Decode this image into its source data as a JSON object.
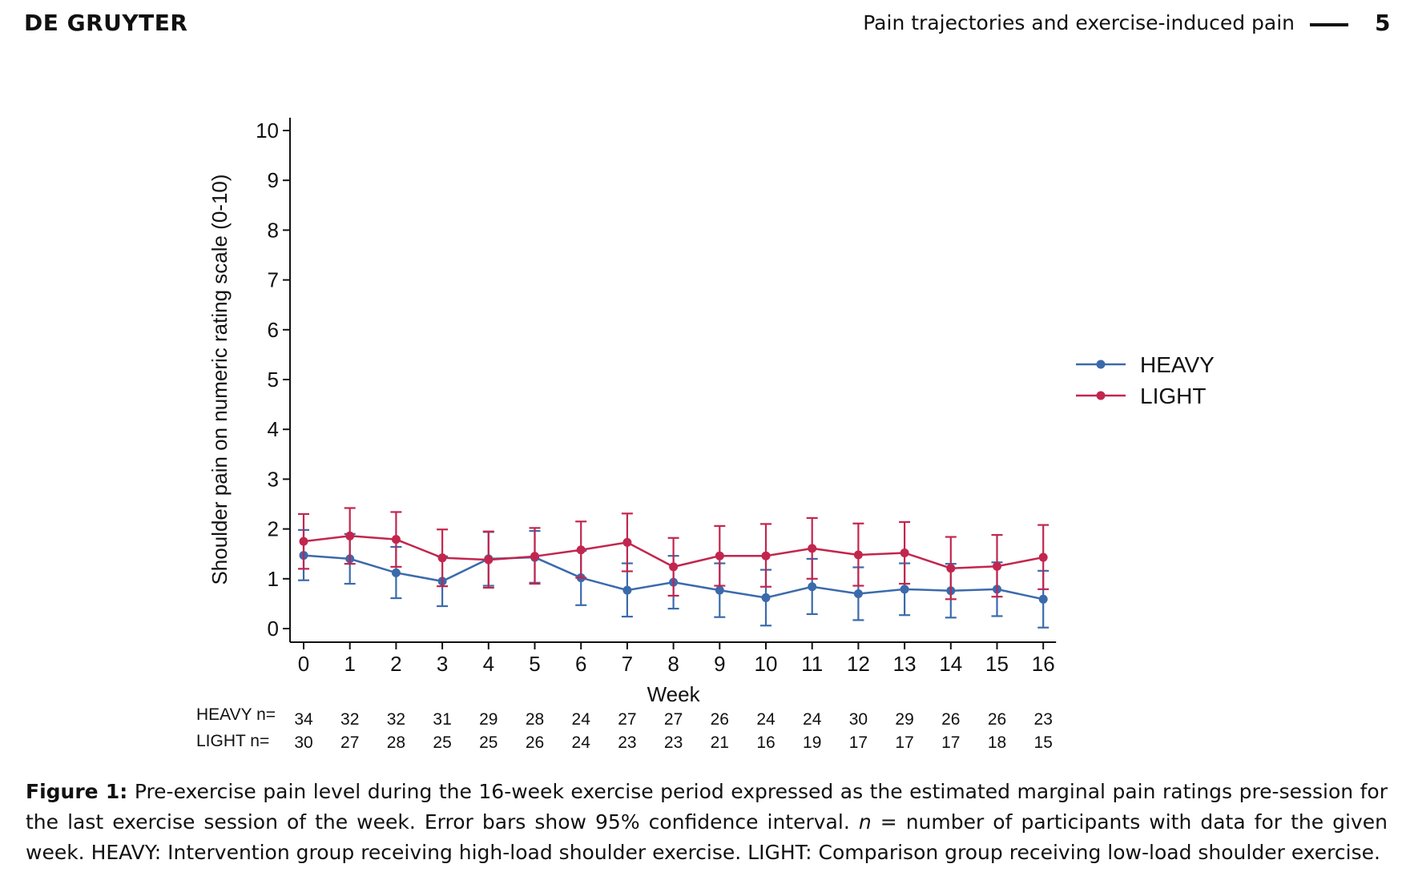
{
  "header": {
    "publisher": "DE GRUYTER",
    "running_title": "Pain trajectories and exercise-induced pain",
    "page_number": "5"
  },
  "caption": {
    "label": "Figure 1:",
    "text_a": "Pre-exercise pain level during the 16-week exercise period expressed as the estimated marginal pain ratings pre-session for the last exercise session of the week. Error bars show 95% confidence interval.",
    "n_symbol": "n",
    "text_b": "= number of participants with data for the given week. HEAVY: Intervention group receiving high-load shoulder exercise. LIGHT: Comparison group receiving low-load shoulder exercise."
  },
  "colors": {
    "heavy": "#3b6aac",
    "light": "#c2264e",
    "axis": "#111111"
  },
  "chart_data": {
    "type": "line",
    "xlabel": "Week",
    "ylabel": "Shoulder pain on numeric rating scale (0-10)",
    "xlim": [
      0,
      16
    ],
    "ylim": [
      0,
      10
    ],
    "x": [
      0,
      1,
      2,
      3,
      4,
      5,
      6,
      7,
      8,
      9,
      10,
      11,
      12,
      13,
      14,
      15,
      16
    ],
    "yticks": [
      0,
      1,
      2,
      3,
      4,
      5,
      6,
      7,
      8,
      9,
      10
    ],
    "legend_position": "right",
    "series": [
      {
        "name": "HEAVY",
        "color": "#3b6aac",
        "values": [
          1.47,
          1.4,
          1.12,
          0.95,
          1.4,
          1.43,
          1.02,
          0.77,
          0.93,
          0.77,
          0.62,
          0.84,
          0.7,
          0.79,
          0.76,
          0.79,
          0.59
        ],
        "ci_low": [
          0.97,
          0.9,
          0.61,
          0.45,
          0.86,
          0.92,
          0.47,
          0.24,
          0.4,
          0.23,
          0.06,
          0.29,
          0.17,
          0.27,
          0.22,
          0.25,
          0.02
        ],
        "ci_high": [
          1.98,
          1.9,
          1.64,
          1.45,
          1.94,
          1.96,
          1.56,
          1.31,
          1.46,
          1.31,
          1.18,
          1.4,
          1.23,
          1.31,
          1.3,
          1.33,
          1.16
        ]
      },
      {
        "name": "LIGHT",
        "color": "#c2264e",
        "values": [
          1.75,
          1.86,
          1.79,
          1.42,
          1.38,
          1.45,
          1.58,
          1.73,
          1.24,
          1.46,
          1.46,
          1.61,
          1.48,
          1.52,
          1.21,
          1.25,
          1.43
        ],
        "ci_low": [
          1.2,
          1.3,
          1.24,
          0.85,
          0.82,
          0.9,
          1.02,
          1.15,
          0.66,
          0.86,
          0.84,
          1.0,
          0.86,
          0.9,
          0.59,
          0.64,
          0.79
        ],
        "ci_high": [
          2.3,
          2.42,
          2.34,
          1.99,
          1.95,
          2.02,
          2.15,
          2.31,
          1.82,
          2.06,
          2.1,
          2.22,
          2.11,
          2.14,
          1.84,
          1.88,
          2.08
        ]
      }
    ],
    "n_table": {
      "heavy_label": "HEAVY n=",
      "light_label": "LIGHT  n=",
      "heavy": [
        "34",
        "32",
        "32",
        "31",
        "29",
        "28",
        "24",
        "27",
        "27",
        "26",
        "24",
        "24",
        "30",
        "29",
        "26",
        "26",
        "23"
      ],
      "light": [
        "30",
        "27",
        "28",
        "25",
        "25",
        "26",
        "24",
        "23",
        "23",
        "21",
        "16",
        "19",
        "17",
        "17",
        "17",
        "18",
        "15"
      ]
    }
  }
}
